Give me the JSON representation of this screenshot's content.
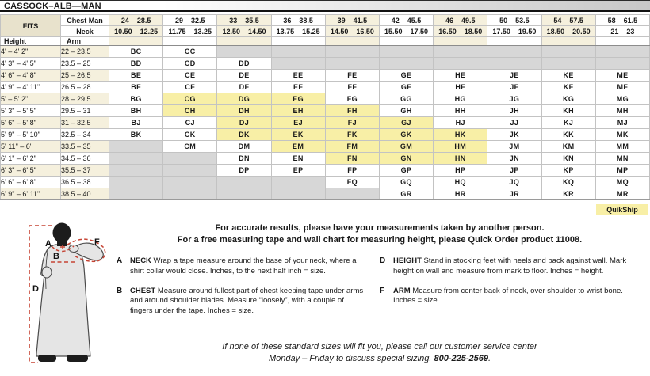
{
  "title": "CASSOCK–ALB—MAN",
  "colors": {
    "stripe_cream": "#f5f0dd",
    "fits_tan": "#e8e2cc",
    "quikship_yellow": "#f8efa6",
    "unavailable_gray": "#d7d7d7",
    "measure_line_red": "#c64434"
  },
  "table": {
    "fits_label": "FITS",
    "chest_row_label": "Chest Man",
    "neck_row_label": "Neck",
    "height_col_label": "Height",
    "arm_col_label": "Arm",
    "chest_ranges": [
      "24 – 28.5",
      "29 – 32.5",
      "33 – 35.5",
      "36 – 38.5",
      "39 – 41.5",
      "42 – 45.5",
      "46 – 49.5",
      "50 – 53.5",
      "54 – 57.5",
      "58 – 61.5"
    ],
    "neck_ranges": [
      "10.50 – 12.25",
      "11.75 – 13.25",
      "12.50 – 14.50",
      "13.75 – 15.25",
      "14.50 – 16.50",
      "15.50 – 17.50",
      "16.50 – 18.50",
      "17.50 – 19.50",
      "18.50 – 20.50",
      "21 – 23"
    ],
    "rows": [
      {
        "height": "4' – 4' 2\"",
        "arm": "22 – 23.5",
        "codes": [
          "BC",
          "CC",
          null,
          null,
          null,
          null,
          null,
          null,
          null,
          null
        ]
      },
      {
        "height": "4' 3\" – 4' 5\"",
        "arm": "23.5 – 25",
        "codes": [
          "BD",
          "CD",
          "DD",
          null,
          null,
          null,
          null,
          null,
          null,
          null
        ]
      },
      {
        "height": "4' 6\" – 4' 8\"",
        "arm": "25 – 26.5",
        "codes": [
          "BE",
          "CE",
          "DE",
          "EE",
          "FE",
          "GE",
          "HE",
          "JE",
          "KE",
          "ME"
        ]
      },
      {
        "height": "4' 9\" – 4' 11\"",
        "arm": "26.5 – 28",
        "codes": [
          "BF",
          "CF",
          "DF",
          "EF",
          "FF",
          "GF",
          "HF",
          "JF",
          "KF",
          "MF"
        ]
      },
      {
        "height": "5' – 5' 2\"",
        "arm": "28 – 29.5",
        "codes": [
          "BG",
          "CG",
          "DG",
          "EG",
          "FG",
          "GG",
          "HG",
          "JG",
          "KG",
          "MG"
        ]
      },
      {
        "height": "5' 3\" – 5' 5\"",
        "arm": "29.5 – 31",
        "codes": [
          "BH",
          "CH",
          "DH",
          "EH",
          "FH",
          "GH",
          "HH",
          "JH",
          "KH",
          "MH"
        ]
      },
      {
        "height": "5' 6\" – 5' 8\"",
        "arm": "31 – 32.5",
        "codes": [
          "BJ",
          "CJ",
          "DJ",
          "EJ",
          "FJ",
          "GJ",
          "HJ",
          "JJ",
          "KJ",
          "MJ"
        ]
      },
      {
        "height": "5' 9\" – 5' 10\"",
        "arm": "32.5 – 34",
        "codes": [
          "BK",
          "CK",
          "DK",
          "EK",
          "FK",
          "GK",
          "HK",
          "JK",
          "KK",
          "MK"
        ]
      },
      {
        "height": "5' 11\" – 6'",
        "arm": "33.5 – 35",
        "codes": [
          null,
          "CM",
          "DM",
          "EM",
          "FM",
          "GM",
          "HM",
          "JM",
          "KM",
          "MM"
        ]
      },
      {
        "height": "6' 1\" – 6' 2\"",
        "arm": "34.5 – 36",
        "codes": [
          null,
          null,
          "DN",
          "EN",
          "FN",
          "GN",
          "HN",
          "JN",
          "KN",
          "MN"
        ]
      },
      {
        "height": "6' 3\" – 6' 5\"",
        "arm": "35.5 – 37",
        "codes": [
          null,
          null,
          "DP",
          "EP",
          "FP",
          "GP",
          "HP",
          "JP",
          "KP",
          "MP"
        ]
      },
      {
        "height": "6' 6\" – 6' 8\"",
        "arm": "36.5 – 38",
        "codes": [
          null,
          null,
          null,
          null,
          "FQ",
          "GQ",
          "HQ",
          "JQ",
          "KQ",
          "MQ"
        ]
      },
      {
        "height": "6' 9\" – 6' 11\"",
        "arm": "38.5 – 40",
        "codes": [
          null,
          null,
          null,
          null,
          null,
          "GR",
          "HR",
          "JR",
          "KR",
          "MR"
        ]
      }
    ],
    "quikship_sizes": [
      "CG",
      "CH",
      "DG",
      "DH",
      "DJ",
      "DK",
      "EG",
      "EH",
      "EJ",
      "EK",
      "EM",
      "FH",
      "FJ",
      "FK",
      "FM",
      "FN",
      "GJ",
      "GK",
      "GM",
      "GN",
      "HK",
      "HM",
      "HN"
    ],
    "quikship_label": "QuikShip"
  },
  "intro": {
    "line1": "For accurate results, please have your measurements taken by another person.",
    "line2": "For a free measuring tape and wall chart for measuring height, please Quick Order product 11008."
  },
  "instructions": [
    {
      "letter": "A",
      "term": "NECK",
      "text": " Wrap a tape measure around the base of your neck, where a shirt collar would close. Inches, to the next half inch = size."
    },
    {
      "letter": "B",
      "term": "CHEST",
      "text": " Measure around fullest part of chest keeping tape under arms and around shoulder blades. Measure “loosely”, with a couple of fingers under the tape. Inches = size."
    },
    {
      "letter": "D",
      "term": "HEIGHT",
      "text": " Stand in stocking feet with heels and back against wall. Mark height on wall and measure from mark to floor. Inches = height."
    },
    {
      "letter": "F",
      "term": "ARM",
      "text": " Measure from center back of neck, over shoulder to wrist bone. Inches = size."
    }
  ],
  "figure": {
    "label_neck": "A",
    "label_chest": "B",
    "label_height": "D",
    "label_arm": "F"
  },
  "footer": {
    "line1": "If none of these standard sizes will fit you, please call our customer service center",
    "line2_prefix": "Monday – Friday to discuss special sizing. ",
    "phone": "800-225-2569",
    "line2_suffix": "."
  }
}
